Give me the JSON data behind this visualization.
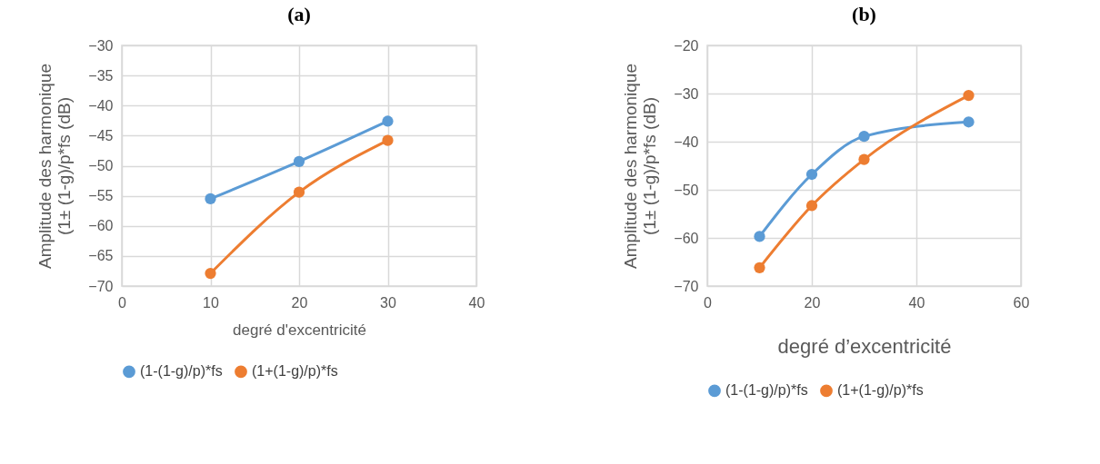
{
  "chart_data": [
    {
      "type": "line",
      "title": "(a)",
      "xlabel": "degré d'excentricité",
      "ylabel": "Amplitude des harmonique\n(1± (1-g)/p*fs (dB)",
      "x": [
        10,
        20,
        30
      ],
      "series": [
        {
          "name": "(1-(1-g)/p)*fs",
          "color": "#5b9bd5",
          "values": [
            -55.5,
            -49.3,
            -42.6
          ]
        },
        {
          "name": "(1+(1-g)/p)*fs",
          "color": "#ed7d31",
          "values": [
            -67.9,
            -54.4,
            -45.8
          ]
        }
      ],
      "xlim": [
        0,
        40
      ],
      "ylim": [
        -70,
        -30
      ],
      "xticks": [
        0,
        10,
        20,
        30,
        40
      ],
      "yticks": [
        -70,
        -65,
        -60,
        -55,
        -50,
        -45,
        -40,
        -35,
        -30
      ],
      "grid": true,
      "legend": "bottom",
      "marker": "circle"
    },
    {
      "type": "line",
      "title": "(b)",
      "xlabel": "degré d’excentricité",
      "ylabel": "Amplitude des harmonique\n(1± (1-g)/p*fs (dB)",
      "x": [
        10,
        20,
        30,
        50
      ],
      "series": [
        {
          "name": "(1-(1-g)/p)*fs",
          "color": "#5b9bd5",
          "values": [
            -59.7,
            -46.8,
            -38.9,
            -35.9
          ]
        },
        {
          "name": "(1+(1-g)/p)*fs",
          "color": "#ed7d31",
          "values": [
            -66.2,
            -53.3,
            -43.7,
            -30.4
          ]
        }
      ],
      "xlim": [
        0,
        60
      ],
      "ylim": [
        -70,
        -20
      ],
      "xticks": [
        0,
        20,
        40,
        60
      ],
      "yticks": [
        -70,
        -60,
        -50,
        -40,
        -30,
        -20
      ],
      "grid": true,
      "legend": "bottom",
      "marker": "circle"
    }
  ]
}
